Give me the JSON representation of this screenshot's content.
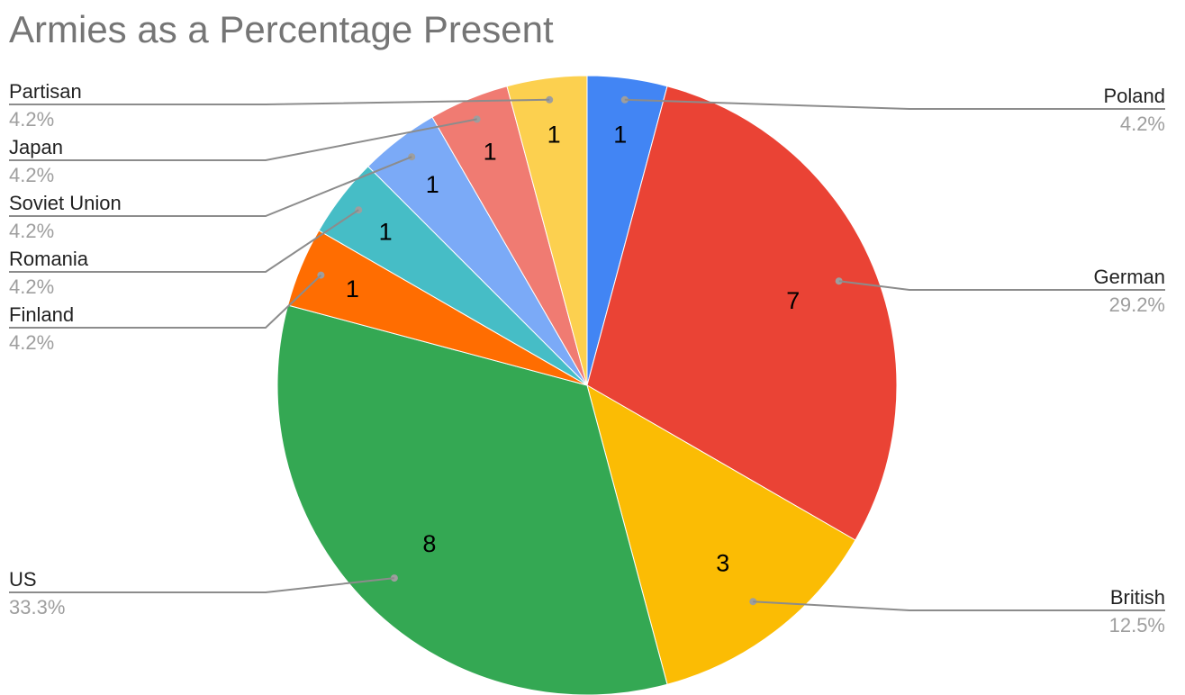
{
  "chart_data": {
    "type": "pie",
    "title": "Armies as a Percentage Present",
    "slices": [
      {
        "label": "Poland",
        "value": 1,
        "value_label": "1",
        "percent_label": "4.2%",
        "color": "#4285F4"
      },
      {
        "label": "German",
        "value": 7,
        "value_label": "7",
        "percent_label": "29.2%",
        "color": "#EA4335"
      },
      {
        "label": "British",
        "value": 3,
        "value_label": "3",
        "percent_label": "12.5%",
        "color": "#FBBC04"
      },
      {
        "label": "US",
        "value": 8,
        "value_label": "8",
        "percent_label": "33.3%",
        "color": "#34A853"
      },
      {
        "label": "Finland",
        "value": 1,
        "value_label": "1",
        "percent_label": "4.2%",
        "color": "#FF6D01"
      },
      {
        "label": "Romania",
        "value": 1,
        "value_label": "1",
        "percent_label": "4.2%",
        "color": "#46BDC6"
      },
      {
        "label": "Soviet Union",
        "value": 1,
        "value_label": "1",
        "percent_label": "4.2%",
        "color": "#7BAAF7"
      },
      {
        "label": "Japan",
        "value": 1,
        "value_label": "1",
        "percent_label": "4.2%",
        "color": "#F07B72"
      },
      {
        "label": "Partisan",
        "value": 1,
        "value_label": "1",
        "percent_label": "4.2%",
        "color": "#FCD04F"
      }
    ],
    "legend": "labeled slices with leader lines"
  }
}
